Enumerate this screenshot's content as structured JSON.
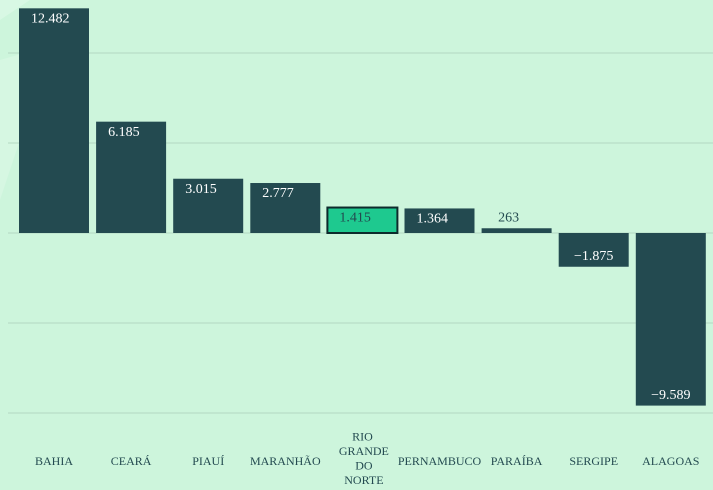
{
  "chart_data": {
    "type": "bar",
    "categories": [
      "BAHIA",
      "CEARÁ",
      "PIAUÍ",
      "MARANHÃO",
      "RIO GRANDE DO NORTE",
      "PERNAMBUCO",
      "PARAÍBA",
      "SERGIPE",
      "ALAGOAS"
    ],
    "values": [
      12482,
      6185,
      3015,
      2777,
      1415,
      1364,
      263,
      -1875,
      -9589
    ],
    "value_labels": [
      "12.482",
      "6.185",
      "3.015",
      "2.777",
      "1.415",
      "1.364",
      "263",
      "−1.875",
      "−9.589"
    ],
    "color": "#234a50",
    "highlight": 4,
    "highlight_color": "#1ec98f",
    "ylim": [
      -10000,
      12500
    ],
    "yticks": [
      -10000,
      -5000,
      0,
      5000,
      10000
    ],
    "grid": true
  }
}
